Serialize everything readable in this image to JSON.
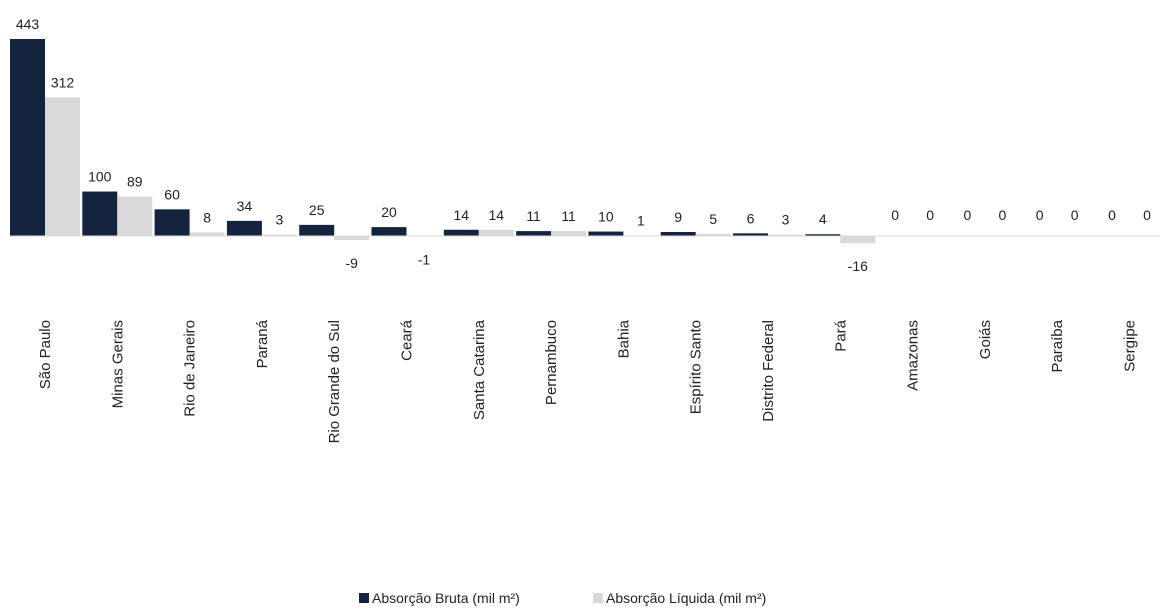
{
  "chart_data": {
    "type": "bar",
    "categories": [
      "São Paulo",
      "Minas Gerais",
      "Rio de Janeiro",
      "Paraná",
      "Rio Grande do Sul",
      "Ceará",
      "Santa Catarina",
      "Pernambuco",
      "Bahia",
      "Espírito Santo",
      "Distrito Federal",
      "Pará",
      "Amazonas",
      "Goiás",
      "Paraíba",
      "Sergipe"
    ],
    "series": [
      {
        "name": "Absorção Bruta (mil m²)",
        "color": "#14243f",
        "values": [
          443,
          100,
          60,
          34,
          25,
          20,
          14,
          11,
          10,
          9,
          6,
          4,
          0,
          0,
          0,
          0
        ]
      },
      {
        "name": "Absorção Líquida (mil m²)",
        "color": "#d9d9d9",
        "values": [
          312,
          89,
          8,
          3,
          -9,
          -1,
          14,
          11,
          1,
          5,
          3,
          -16,
          0,
          0,
          0,
          0
        ]
      }
    ],
    "legend_position": "bottom",
    "grid": false,
    "axis_line_color": "#d9d9d9"
  }
}
